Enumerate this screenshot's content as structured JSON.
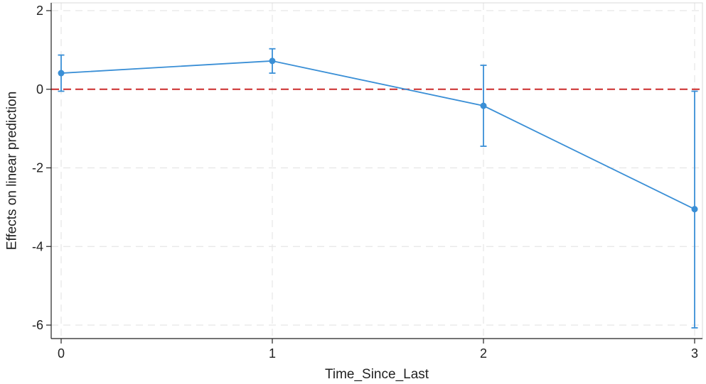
{
  "chart_data": {
    "type": "line",
    "title": "",
    "xlabel": "Time_Since_Last",
    "ylabel": "Effects on linear prediction",
    "x": [
      0,
      1,
      2,
      3
    ],
    "x_ticks": [
      "0",
      "1",
      "2",
      "3"
    ],
    "y_ticks": [
      "2",
      "0",
      "-2",
      "-4",
      "-6"
    ],
    "series": [
      {
        "values": [
          0.41,
          0.72,
          -0.42,
          -3.05
        ],
        "ci_lower": [
          -0.05,
          0.41,
          -1.45,
          -6.07
        ],
        "ci_upper": [
          0.87,
          1.03,
          0.61,
          -0.05
        ]
      }
    ],
    "reference_line": {
      "y": 0,
      "style": "dashed",
      "color": "#cc2b2b"
    },
    "xlim": [
      0,
      3
    ],
    "ylim": [
      -6,
      2
    ],
    "grid": true,
    "colors": {
      "series": "#3a8fd6",
      "grid": "#e6e6e6",
      "axis": "#222222"
    }
  }
}
